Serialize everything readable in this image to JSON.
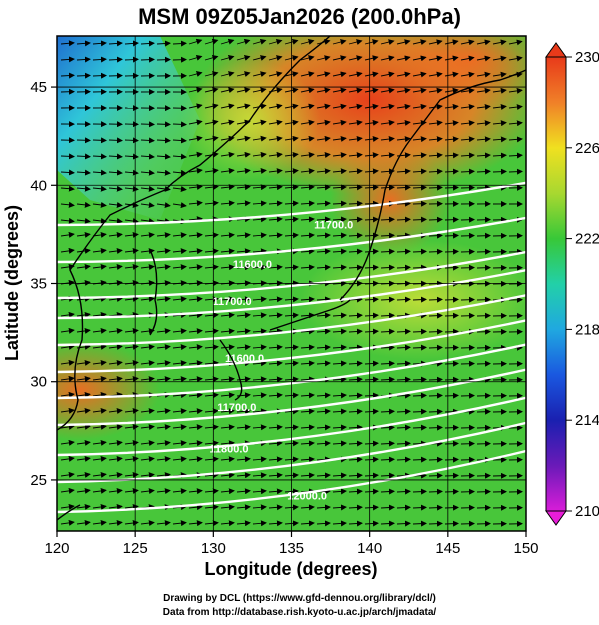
{
  "title": "MSM 09Z05Jan2026 (200.0hPa)",
  "credits": {
    "line1": "Drawing by DCL (https://www.gfd-dennou.org/library/dcl/)",
    "line2": "Data from http://database.rish.kyoto-u.ac.jp/arch/jmadata/"
  },
  "chart_data": {
    "type": "heatmap",
    "xlabel": "Longitude (degrees)",
    "ylabel": "Latitude  (degrees)",
    "xlim": [
      120,
      150
    ],
    "ylim": [
      22.4,
      47.6
    ],
    "xticks": [
      "120",
      "125",
      "130",
      "135",
      "140",
      "145",
      "150"
    ],
    "yticks": [
      "25",
      "30",
      "35",
      "40",
      "45"
    ],
    "colorbar": {
      "range": [
        210,
        230
      ],
      "ticks": [
        "210",
        "214",
        "218",
        "222",
        "226",
        "230"
      ]
    },
    "contour_labels": [
      {
        "text": "11700.0",
        "lon": 137.7,
        "lat": 37.8
      },
      {
        "text": "11600.0",
        "lon": 132.5,
        "lat": 35.8
      },
      {
        "text": "11700.0",
        "lon": 131.2,
        "lat": 33.9
      },
      {
        "text": "11600.0",
        "lon": 132.0,
        "lat": 31.0
      },
      {
        "text": "11700.0",
        "lon": 131.5,
        "lat": 28.5
      },
      {
        "text": "11800.0",
        "lon": 131.0,
        "lat": 26.4
      },
      {
        "text": "12000.0",
        "lon": 136.0,
        "lat": 24.0
      }
    ],
    "colors": {
      "high": "#e8501c",
      "mid": "#49c83a",
      "low": "#3fcaa8"
    }
  }
}
